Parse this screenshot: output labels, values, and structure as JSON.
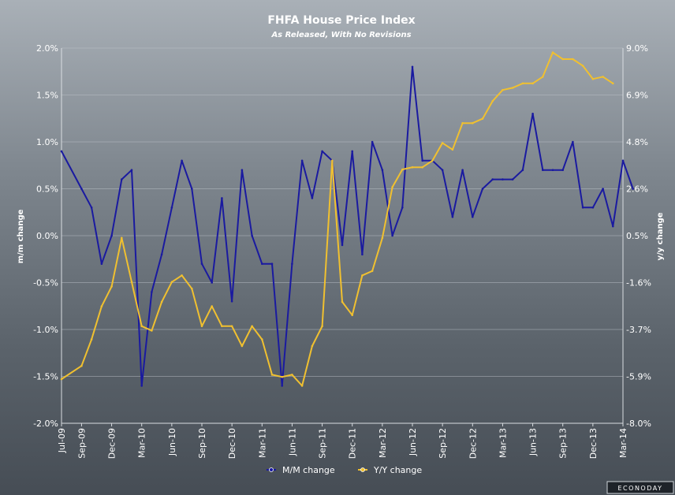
{
  "chart_data": {
    "type": "line",
    "title": "FHFA House Price Index",
    "subtitle": "As Released, With No Revisions",
    "y_left_label": "m/m change",
    "y_right_label": "y/y change",
    "y_left_ticks": [
      "2.0%",
      "1.5%",
      "1.0%",
      "0.5%",
      "0.0%",
      "-0.5%",
      "-1.0%",
      "-1.5%",
      "-2.0%"
    ],
    "y_right_ticks": [
      "9.0%",
      "6.9%",
      "4.8%",
      "2.6%",
      "0.5%",
      "-1.6%",
      "-3.7%",
      "-5.9%",
      "-8.0%"
    ],
    "y_left_range": [
      -2.0,
      2.0
    ],
    "y_right_range": [
      -8.0,
      9.0
    ],
    "x_ticks": [
      "Jul-09",
      "Sep-09",
      "Dec-09",
      "Mar-10",
      "Jun-10",
      "Sep-10",
      "Dec-10",
      "Mar-11",
      "Jun-11",
      "Sep-11",
      "Dec-11",
      "Mar-12",
      "Jun-12",
      "Sep-12",
      "Dec-12",
      "Mar-13",
      "Jun-13",
      "Sep-13",
      "Dec-13",
      "Mar-14"
    ],
    "x_start": "Jul-09",
    "x_end": "Mar-14",
    "series": [
      {
        "name": "M/M change",
        "color": "#1a1aa0",
        "axis": "left",
        "values": [
          0.9,
          0.5,
          0.3,
          -0.3,
          0.0,
          0.6,
          0.7,
          -1.6,
          -0.6,
          -0.2,
          0.3,
          0.8,
          0.5,
          -0.3,
          -0.5,
          0.4,
          -0.7,
          0.7,
          0.0,
          -0.3,
          -0.3,
          -1.6,
          -0.3,
          0.8,
          0.4,
          0.9,
          0.8,
          -0.1,
          0.9,
          -0.2,
          1.0,
          0.7,
          0.0,
          0.3,
          1.8,
          0.8,
          0.8,
          0.7,
          0.2,
          0.7,
          0.2,
          0.5,
          0.6,
          0.6,
          0.6,
          0.7,
          1.3,
          0.7,
          0.7,
          0.7,
          1.0,
          0.3,
          0.3,
          0.5,
          0.1,
          0.8,
          0.5
        ],
        "dates": [
          "Jul-09",
          "Sep-09",
          "Oct-09",
          "Nov-09",
          "Dec-09",
          "Jan-10",
          "Feb-10",
          "Mar-10",
          "Apr-10",
          "May-10",
          "Jun-10",
          "Jul-10",
          "Aug-10",
          "Sep-10",
          "Oct-10",
          "Nov-10",
          "Dec-10",
          "Jan-11",
          "Feb-11",
          "Mar-11",
          "Apr-11",
          "May-11",
          "Jun-11",
          "Jul-11",
          "Aug-11",
          "Sep-11",
          "Oct-11",
          "Nov-11",
          "Dec-11",
          "Jan-12",
          "Feb-12",
          "Mar-12",
          "Apr-12",
          "May-12",
          "Jun-12",
          "Jul-12",
          "Aug-12",
          "Sep-12",
          "Oct-12",
          "Nov-12",
          "Dec-12",
          "Jan-13",
          "Feb-13",
          "Mar-13",
          "Apr-13",
          "May-13",
          "Jun-13",
          "Jul-13",
          "Aug-13",
          "Sep-13",
          "Oct-13",
          "Nov-13",
          "Dec-13",
          "Jan-14",
          "Feb-14",
          "Mar-14",
          "Apr-14"
        ]
      },
      {
        "name": "Y/Y change",
        "color": "#f0c030",
        "axis": "right",
        "values": [
          -6.0,
          -5.4,
          -4.2,
          -2.7,
          -1.8,
          0.4,
          -1.6,
          -3.6,
          -3.8,
          -2.5,
          -1.6,
          -1.3,
          -1.9,
          -3.6,
          -2.7,
          -3.6,
          -3.6,
          -4.5,
          -3.6,
          -4.2,
          -5.8,
          -5.9,
          -5.8,
          -6.3,
          -4.5,
          -3.6,
          3.9,
          -2.5,
          -3.1,
          -1.3,
          -1.1,
          0.4,
          2.7,
          3.5,
          3.6,
          3.6,
          3.9,
          4.7,
          4.4,
          5.6,
          5.6,
          5.8,
          6.6,
          7.1,
          7.2,
          7.4,
          7.4,
          7.7,
          8.8,
          8.5,
          8.5,
          8.2,
          7.6,
          7.7,
          7.4
        ],
        "dates": [
          "Jul-09",
          "Sep-09",
          "Oct-09",
          "Nov-09",
          "Dec-09",
          "Jan-10",
          "Feb-10",
          "Mar-10",
          "Apr-10",
          "May-10",
          "Jun-10",
          "Jul-10",
          "Aug-10",
          "Sep-10",
          "Oct-10",
          "Nov-10",
          "Dec-10",
          "Jan-11",
          "Feb-11",
          "Mar-11",
          "Apr-11",
          "May-11",
          "Jun-11",
          "Jul-11",
          "Aug-11",
          "Sep-11",
          "Oct-11",
          "Nov-11",
          "Dec-11",
          "Jan-12",
          "Feb-12",
          "Mar-12",
          "Apr-12",
          "May-12",
          "Jun-12",
          "Jul-12",
          "Aug-12",
          "Sep-12",
          "Oct-12",
          "Nov-12",
          "Dec-12",
          "Jan-13",
          "Feb-13",
          "Mar-13",
          "Apr-13",
          "May-13",
          "Jun-13",
          "Jul-13",
          "Aug-13",
          "Sep-13",
          "Oct-13",
          "Nov-13",
          "Dec-13",
          "Jan-14",
          "Feb-14"
        ]
      }
    ],
    "grid": true,
    "legend_position": "bottom-center"
  },
  "branding": "ECONODAY"
}
